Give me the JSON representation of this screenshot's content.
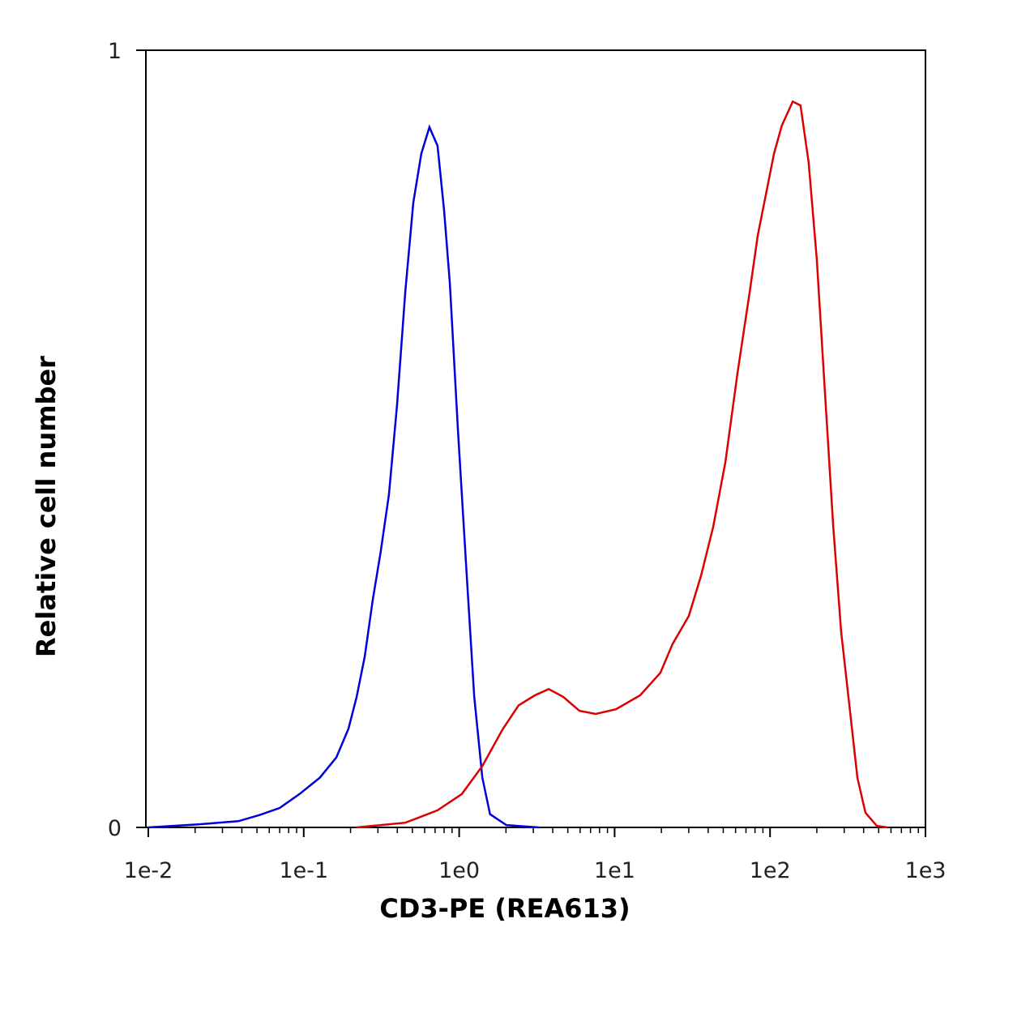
{
  "chart_data": {
    "type": "line",
    "xlabel": "CD3-PE (REA613)",
    "ylabel": "Relative cell number",
    "xscale": "log",
    "xlim": [
      0.01,
      1000
    ],
    "ylim": [
      0,
      1
    ],
    "xticks": [
      {
        "value": 0.01,
        "label": "1e-2"
      },
      {
        "value": 0.1,
        "label": "1e-1"
      },
      {
        "value": 1,
        "label": "1e0"
      },
      {
        "value": 10,
        "label": "1e1"
      },
      {
        "value": 100,
        "label": "1e2"
      },
      {
        "value": 1000,
        "label": "1e3"
      }
    ],
    "xminorticks": [
      0.02,
      0.03,
      0.04,
      0.05,
      0.06,
      0.07,
      0.08,
      0.09,
      0.2,
      0.3,
      0.4,
      0.5,
      0.6,
      0.7,
      0.8,
      0.9,
      2,
      3,
      4,
      5,
      6,
      7,
      8,
      9,
      20,
      30,
      40,
      50,
      60,
      70,
      80,
      90,
      200,
      300,
      400,
      500,
      600,
      700,
      800,
      900
    ],
    "yticks": [
      0,
      1
    ],
    "series": [
      {
        "color": "#0000dd",
        "x": [
          0.01,
          0.021,
          0.038,
          0.052,
          0.07,
          0.094,
          0.127,
          0.162,
          0.194,
          0.219,
          0.247,
          0.278,
          0.313,
          0.353,
          0.398,
          0.45,
          0.507,
          0.571,
          0.644,
          0.726,
          0.8,
          0.871,
          0.982,
          1.11,
          1.25,
          1.41,
          1.58,
          2.01,
          3.26
        ],
        "values": [
          0,
          0.004,
          0.008,
          0.016,
          0.025,
          0.043,
          0.064,
          0.09,
          0.127,
          0.168,
          0.22,
          0.293,
          0.355,
          0.428,
          0.543,
          0.689,
          0.804,
          0.867,
          0.901,
          0.877,
          0.794,
          0.7,
          0.511,
          0.335,
          0.168,
          0.064,
          0.017,
          0.003,
          0
        ]
      },
      {
        "color": "#dd0000",
        "x": [
          0.219,
          0.45,
          0.726,
          1.04,
          1.41,
          1.9,
          2.41,
          3.07,
          3.77,
          4.67,
          5.94,
          7.55,
          10.2,
          14.6,
          19.7,
          23.6,
          30.0,
          36.0,
          43.1,
          51.6,
          61.8,
          74.0,
          83.4,
          94.0,
          106,
          119,
          140,
          157,
          177,
          200,
          225,
          255,
          287,
          324,
          365,
          411,
          486,
          569
        ],
        "values": [
          0,
          0.006,
          0.022,
          0.043,
          0.079,
          0.126,
          0.157,
          0.17,
          0.178,
          0.168,
          0.15,
          0.146,
          0.152,
          0.17,
          0.199,
          0.236,
          0.272,
          0.324,
          0.387,
          0.47,
          0.585,
          0.689,
          0.762,
          0.814,
          0.867,
          0.903,
          0.934,
          0.929,
          0.856,
          0.731,
          0.564,
          0.387,
          0.251,
          0.157,
          0.064,
          0.019,
          0.002,
          0
        ]
      }
    ]
  }
}
